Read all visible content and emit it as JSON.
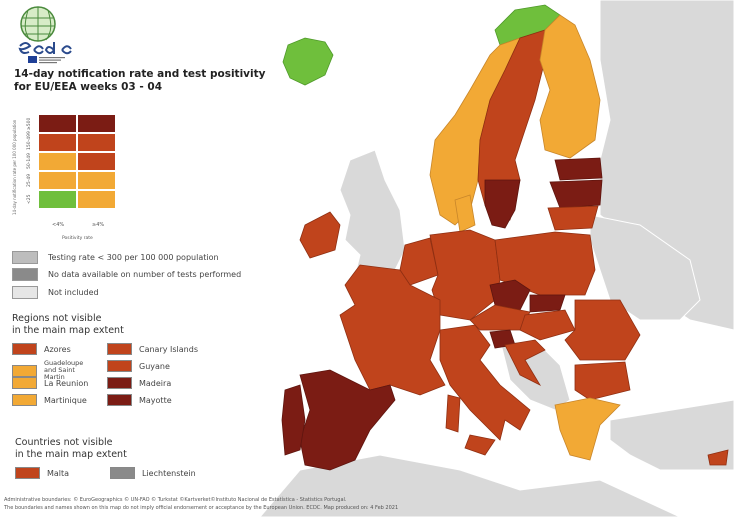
{
  "logo": {
    "text": "ecdc",
    "subtitle": "European Centre for Disease Prevention and Control"
  },
  "title": {
    "line1": "14-day notification rate and test positivity",
    "line2": "for EU/EEA weeks 03 - 04"
  },
  "matrix": {
    "y_axis_title": "14-day notification rate per 100 000 population",
    "y_labels": [
      "≥500",
      "150-499",
      "50-149",
      "25-49",
      "<25"
    ],
    "x_labels": [
      "<4%",
      "≥4%"
    ],
    "x_axis_title": "Positivity rate",
    "cells": [
      [
        "#7b1c14",
        "#7b1c14"
      ],
      [
        "#c0441c",
        "#c0441c"
      ],
      [
        "#f2a935",
        "#c0441c"
      ],
      [
        "#f2a935",
        "#f2a935"
      ],
      [
        "#6fbf3c",
        "#f2a935"
      ]
    ]
  },
  "legend": [
    {
      "label": "Testing rate < 300 per 100 000 population",
      "color": "#bdbdbd"
    },
    {
      "label": "No data available on number of tests performed",
      "color": "#8a8a8a"
    },
    {
      "label": "Not included",
      "color": "#e6e6e6"
    }
  ],
  "regions": {
    "heading1": "Regions not visible",
    "heading2": "in the main map extent",
    "left": [
      {
        "label": "Azores",
        "color": "#c0441c"
      },
      {
        "label": "Guadeloupe and Saint Martin",
        "color": "#f2a935"
      },
      {
        "label": "La Reunion",
        "color": "#f2a935"
      },
      {
        "label": "Martinique",
        "color": "#f2a935"
      }
    ],
    "right": [
      {
        "label": "Canary Islands",
        "color": "#c0441c"
      },
      {
        "label": "Guyane",
        "color": "#c0441c"
      },
      {
        "label": "Madeira",
        "color": "#7b1c14"
      },
      {
        "label": "Mayotte",
        "color": "#7b1c14"
      }
    ]
  },
  "countries": {
    "heading1": "Countries not visible",
    "heading2": "in the main map extent",
    "items": [
      {
        "label": "Malta",
        "color": "#c0441c"
      },
      {
        "label": "Liechtenstein",
        "color": "#8a8a8a"
      }
    ]
  },
  "footer": {
    "line1": "Administrative boundaries: © EuroGeographics © UN-FAO © Turkstat ©Kartverket©Instituto Nacional de Estatística - Statistics Portugal.",
    "line2": "The boundaries and names shown on this map do not imply official endorsement or acceptance by the European Union. ECDC. Map produced on: 4 Feb 2021"
  }
}
